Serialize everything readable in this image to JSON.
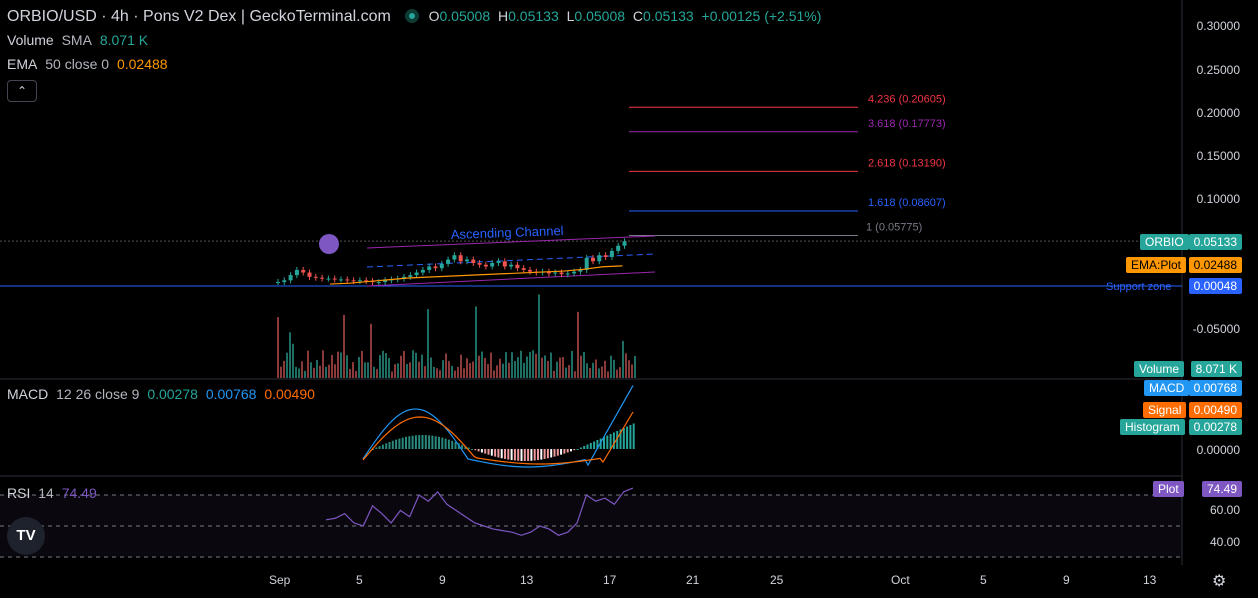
{
  "header": {
    "title": "ORBIO/USD · 4h · Pons V2 Dex | GeckoTerminal.com",
    "ohlc": {
      "o_label": "O",
      "o": "0.05008",
      "h_label": "H",
      "h": "0.05133",
      "l_label": "L",
      "l": "0.05008",
      "c_label": "C",
      "c": "0.05133",
      "change": "+0.00125 (+2.51%)"
    }
  },
  "legends": {
    "volume": {
      "name": "Volume",
      "type": "SMA",
      "value": "8.071 K"
    },
    "ema": {
      "name": "EMA",
      "params": "50 close 0",
      "value": "0.02488"
    },
    "macd": {
      "name": "MACD",
      "params": "12 26 close 9",
      "hist": "0.00278",
      "macd": "0.00768",
      "signal": "0.00490"
    },
    "rsi": {
      "name": "RSI",
      "params": "14",
      "value": "74.49"
    }
  },
  "price_axis": {
    "ticks": [
      "0.30000",
      "0.25000",
      "0.20000",
      "0.15000",
      "0.10000",
      "-0.05000"
    ]
  },
  "macd_axis": {
    "ticks": [
      "0.00000"
    ]
  },
  "rsi_axis": {
    "ticks": [
      "60.00",
      "40.00"
    ]
  },
  "time_axis": {
    "ticks": [
      "Sep",
      "5",
      "9",
      "13",
      "17",
      "21",
      "25",
      "Oct",
      "5",
      "9",
      "13"
    ]
  },
  "tags": {
    "orbio": {
      "name": "ORBIO",
      "value": "0.05133"
    },
    "ema": {
      "name": "EMA:Plot",
      "value": "0.02488"
    },
    "support": {
      "value": "0.00048"
    },
    "volume": {
      "name": "Volume",
      "value": "8.071 K"
    },
    "macd": {
      "name": "MACD",
      "value": "0.00768"
    },
    "signal": {
      "name": "Signal",
      "value": "0.00490"
    },
    "histogram": {
      "name": "Histogram",
      "value": "0.00278"
    },
    "plot": {
      "name": "Plot",
      "value": "74.49"
    }
  },
  "annotations": {
    "channel_label": "Ascending Channel",
    "support_label": "Support zone",
    "fib_levels": [
      {
        "label": "4.236 (0.20605)",
        "price": 0.20605,
        "color": "#f23645"
      },
      {
        "label": "3.618 (0.17773)",
        "price": 0.17773,
        "color": "#9c27b0"
      },
      {
        "label": "2.618 (0.13190)",
        "price": 0.1319,
        "color": "#f23645"
      },
      {
        "label": "1.618 (0.08607)",
        "price": 0.08607,
        "color": "#2962ff"
      },
      {
        "label": "1 (0.05775)",
        "price": 0.05775,
        "color": "#787b86"
      }
    ]
  },
  "colors": {
    "up": "#26a69a",
    "down": "#ef5350",
    "ema": "#ff9800",
    "macd": "#2196f3",
    "signal": "#ff6d00",
    "rsi": "#7e57c2",
    "support": "#2962ff",
    "channel": "#9c27b0",
    "orbio_tag": "#26a69a",
    "support_tag": "#2962ff"
  },
  "icons": {
    "collapse": "chevron-up-icon",
    "logo": "tradingview-logo",
    "settings": "gear-icon",
    "marker": "emoji-marker-icon"
  },
  "chart_data": {
    "type": "candlestick",
    "price_ylim": [
      -0.05,
      0.3
    ],
    "candles_close": [
      0.004,
      0.006,
      0.012,
      0.018,
      0.015,
      0.01,
      0.009,
      0.008,
      0.008,
      0.007,
      0.007,
      0.006,
      0.005,
      0.006,
      0.005,
      0.004,
      0.004,
      0.006,
      0.007,
      0.008,
      0.01,
      0.012,
      0.015,
      0.018,
      0.022,
      0.02,
      0.025,
      0.03,
      0.035,
      0.028,
      0.03,
      0.026,
      0.024,
      0.022,
      0.026,
      0.028,
      0.022,
      0.024,
      0.02,
      0.018,
      0.016,
      0.015,
      0.016,
      0.014,
      0.015,
      0.013,
      0.014,
      0.016,
      0.018,
      0.032,
      0.028,
      0.035,
      0.033,
      0.04,
      0.046,
      0.051
    ],
    "ema_approx": [
      0.004,
      0.005,
      0.007,
      0.009,
      0.011,
      0.012,
      0.013,
      0.014,
      0.015,
      0.016,
      0.017,
      0.018,
      0.019,
      0.021,
      0.024,
      0.025
    ],
    "rsi_values": [
      54,
      55,
      58,
      52,
      50,
      63,
      58,
      52,
      60,
      56,
      70,
      66,
      72,
      64,
      60,
      56,
      52,
      50,
      48,
      47,
      46,
      44,
      46,
      50,
      48,
      44,
      46,
      52,
      70,
      66,
      68,
      64,
      72,
      74.49
    ],
    "rsi_ylim": [
      20,
      80
    ]
  }
}
